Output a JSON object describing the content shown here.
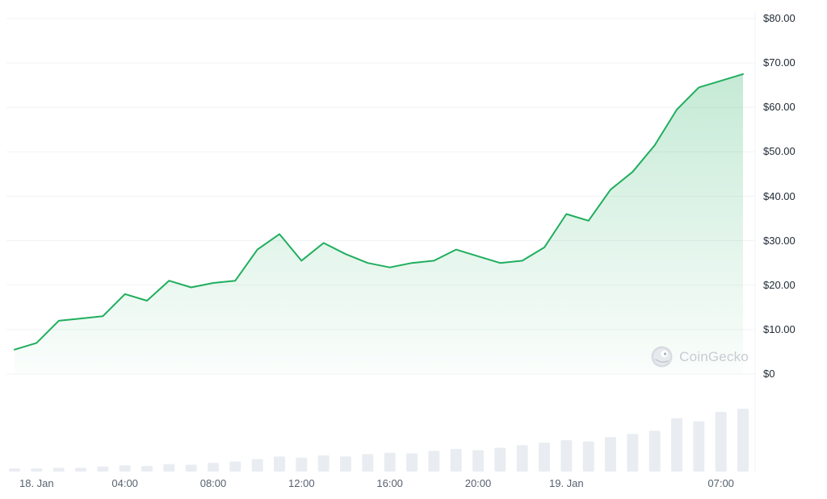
{
  "watermark": {
    "label": "CoinGecko"
  },
  "chart_data": {
    "type": "area",
    "title": "",
    "legend": false,
    "grid": true,
    "ylim": [
      0,
      80
    ],
    "t_range": [
      0,
      33
    ],
    "y_ticks": {
      "labels": [
        "$80.00",
        "$70.00",
        "$60.00",
        "$50.00",
        "$40.00",
        "$30.00",
        "$20.00",
        "$10.00",
        "$0"
      ],
      "values": [
        80,
        70,
        60,
        50,
        40,
        30,
        20,
        10,
        0
      ]
    },
    "x_ticks": [
      {
        "label": "18. Jan",
        "t": 1
      },
      {
        "label": "04:00",
        "t": 5
      },
      {
        "label": "08:00",
        "t": 9
      },
      {
        "label": "12:00",
        "t": 13
      },
      {
        "label": "16:00",
        "t": 17
      },
      {
        "label": "20:00",
        "t": 21
      },
      {
        "label": "19. Jan",
        "t": 25
      },
      {
        "label": "07:00",
        "t": 32
      }
    ],
    "series": [
      {
        "name": "price",
        "values": [
          5.5,
          7,
          12,
          12.5,
          13,
          18,
          16.5,
          21,
          19.5,
          20.5,
          21,
          28,
          31.5,
          25.5,
          29.5,
          27,
          25,
          24,
          25,
          25.5,
          28,
          26.5,
          25,
          25.5,
          28.5,
          36,
          34.5,
          41.5,
          45.5,
          51.5,
          59.5,
          64.5,
          66,
          67.5
        ]
      }
    ],
    "volume_relative": [
      0.05,
      0.05,
      0.06,
      0.06,
      0.08,
      0.1,
      0.09,
      0.12,
      0.11,
      0.14,
      0.16,
      0.2,
      0.24,
      0.22,
      0.26,
      0.24,
      0.28,
      0.3,
      0.29,
      0.33,
      0.36,
      0.34,
      0.38,
      0.42,
      0.46,
      0.5,
      0.48,
      0.55,
      0.6,
      0.65,
      0.85,
      0.8,
      0.95,
      1.0
    ],
    "colors": {
      "line": "#1fae5e",
      "area_top": "rgba(31,174,94,0.26)",
      "area_bottom": "rgba(31,174,94,0.02)",
      "grid": "#f1f3f5",
      "volume": "#e9edf2",
      "y_tick_text": "#212b36",
      "x_tick_text": "#566170",
      "watermark": "#c7ccd3"
    }
  }
}
